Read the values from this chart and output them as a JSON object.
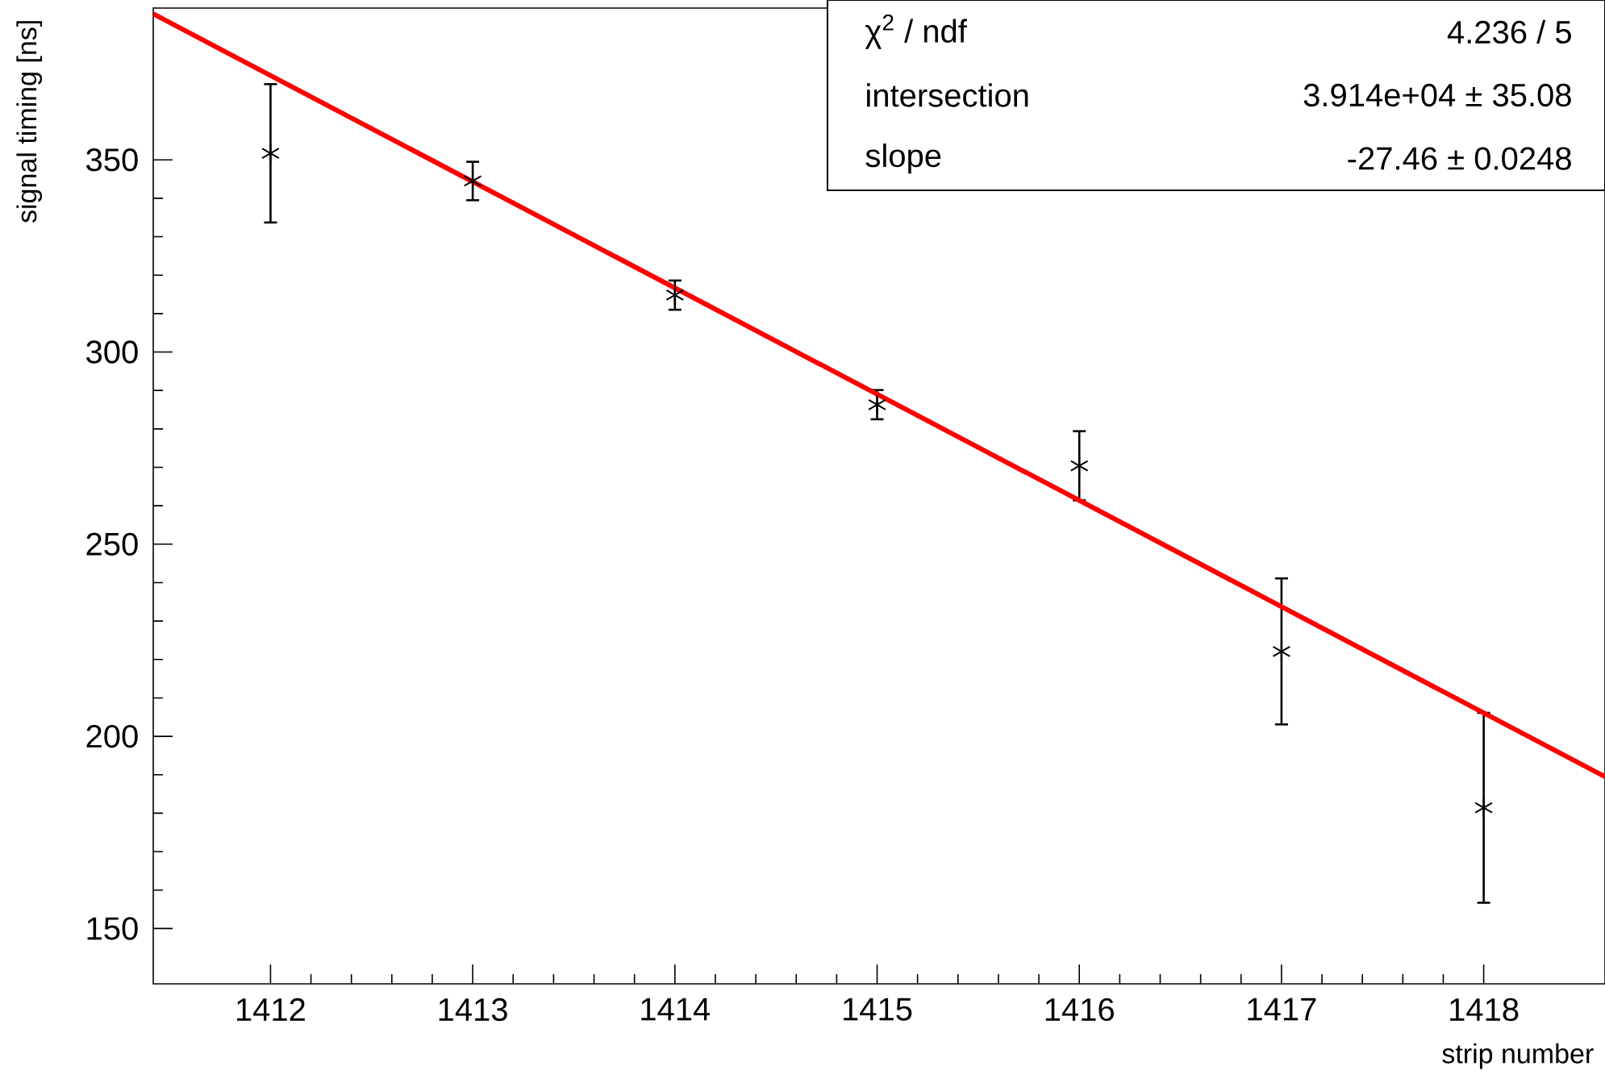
{
  "chart_data": {
    "type": "scatter",
    "xlabel": "strip number",
    "ylabel": "signal timing [ns]",
    "x": [
      1412,
      1413,
      1414,
      1415,
      1416,
      1417,
      1418
    ],
    "series": [
      {
        "color": "#000000",
        "values": [
          351.7,
          344.5,
          314.8,
          286.3,
          270.4,
          222.1,
          181.4
        ],
        "errors": [
          18,
          5,
          3.8,
          3.8,
          9,
          19,
          24.7
        ]
      },
      {
        "type": "line",
        "color": "#ff0000",
        "marker": "none",
        "x": [
          1411.42,
          1418.6
        ],
        "values": [
          388,
          189.5
        ]
      }
    ],
    "marker": "cross",
    "line_style": "solid",
    "xlim": [
      1411.42,
      1418.6
    ],
    "ylim": [
      135.6,
      389.5
    ],
    "xticks": [
      1412,
      1413,
      1414,
      1415,
      1416,
      1417,
      1418
    ],
    "yticks": [
      150,
      200,
      250,
      300,
      350
    ],
    "annotations": [
      "χ$^{2}$ / ndf",
      "4.236 / 5",
      "intersection",
      "3.914e+04 ± 35.08",
      "slope",
      "-27.46 ± 0.0248"
    ]
  }
}
